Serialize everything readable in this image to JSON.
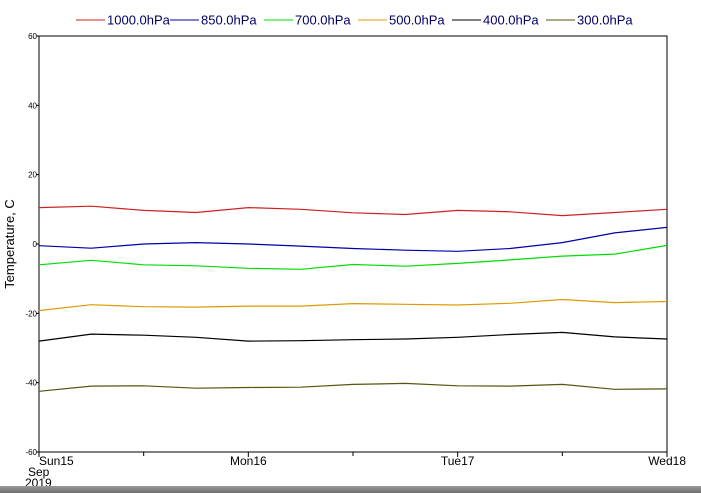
{
  "chart_data": {
    "type": "line",
    "ylabel": "Temperature, C",
    "ylim": [
      -60,
      60
    ],
    "y_ticks": [
      60,
      40,
      20,
      0,
      -20,
      -40,
      -60
    ],
    "x_points": [
      "Sun15 00",
      "Sun15 06",
      "Sun15 12",
      "Sun15 18",
      "Mon16 00",
      "Mon16 06",
      "Mon16 12",
      "Mon16 18",
      "Tue17 00",
      "Tue17 06",
      "Tue17 12",
      "Tue17 18",
      "Wed18 00"
    ],
    "x_tick_labels": [
      {
        "label": "Sun15",
        "index": 0,
        "color": "#cc0000"
      },
      {
        "label": "Mon16",
        "index": 4
      },
      {
        "label": "Tue17",
        "index": 8
      },
      {
        "label": "Wed18",
        "index": 12
      }
    ],
    "x_minor_tick_indices": [
      2,
      6,
      10
    ],
    "x_sub_labels": [
      "Sep",
      "2019"
    ],
    "grid": false,
    "legend_position": "top",
    "series": [
      {
        "name": "1000.0hPa",
        "color": "#cc2222",
        "values": [
          10.5,
          10.9,
          9.7,
          9.1,
          10.5,
          10.0,
          9.0,
          8.5,
          9.7,
          9.3,
          8.2,
          9.1,
          10.0
        ]
      },
      {
        "name": "850.0hPa",
        "color": "#0000aa",
        "values": [
          -0.5,
          -1.2,
          0.0,
          0.4,
          0.0,
          -0.6,
          -1.3,
          -1.8,
          -2.1,
          -1.3,
          0.4,
          3.2,
          4.8
        ]
      },
      {
        "name": "700.0hPa",
        "color": "#00dd00",
        "values": [
          -6.0,
          -4.7,
          -6.0,
          -6.3,
          -7.0,
          -7.3,
          -5.9,
          -6.4,
          -5.6,
          -4.6,
          -3.5,
          -2.9,
          -0.4
        ]
      },
      {
        "name": "500.0hPa",
        "color": "#e09a00",
        "values": [
          -19.2,
          -17.5,
          -18.1,
          -18.2,
          -17.9,
          -17.9,
          -17.2,
          -17.4,
          -17.6,
          -17.1,
          -16.0,
          -16.9,
          -16.6
        ]
      },
      {
        "name": "400.0hPa",
        "color": "#000000",
        "values": [
          -28.0,
          -26.0,
          -26.3,
          -26.9,
          -28.0,
          -27.9,
          -27.6,
          -27.4,
          -26.9,
          -26.1,
          -25.5,
          -26.8,
          -27.4
        ]
      },
      {
        "name": "300.0hPa",
        "color": "#555511",
        "values": [
          -42.5,
          -41.0,
          -40.9,
          -41.6,
          -41.4,
          -41.3,
          -40.5,
          -40.2,
          -40.9,
          -41.0,
          -40.5,
          -41.9,
          -41.8
        ]
      }
    ]
  }
}
